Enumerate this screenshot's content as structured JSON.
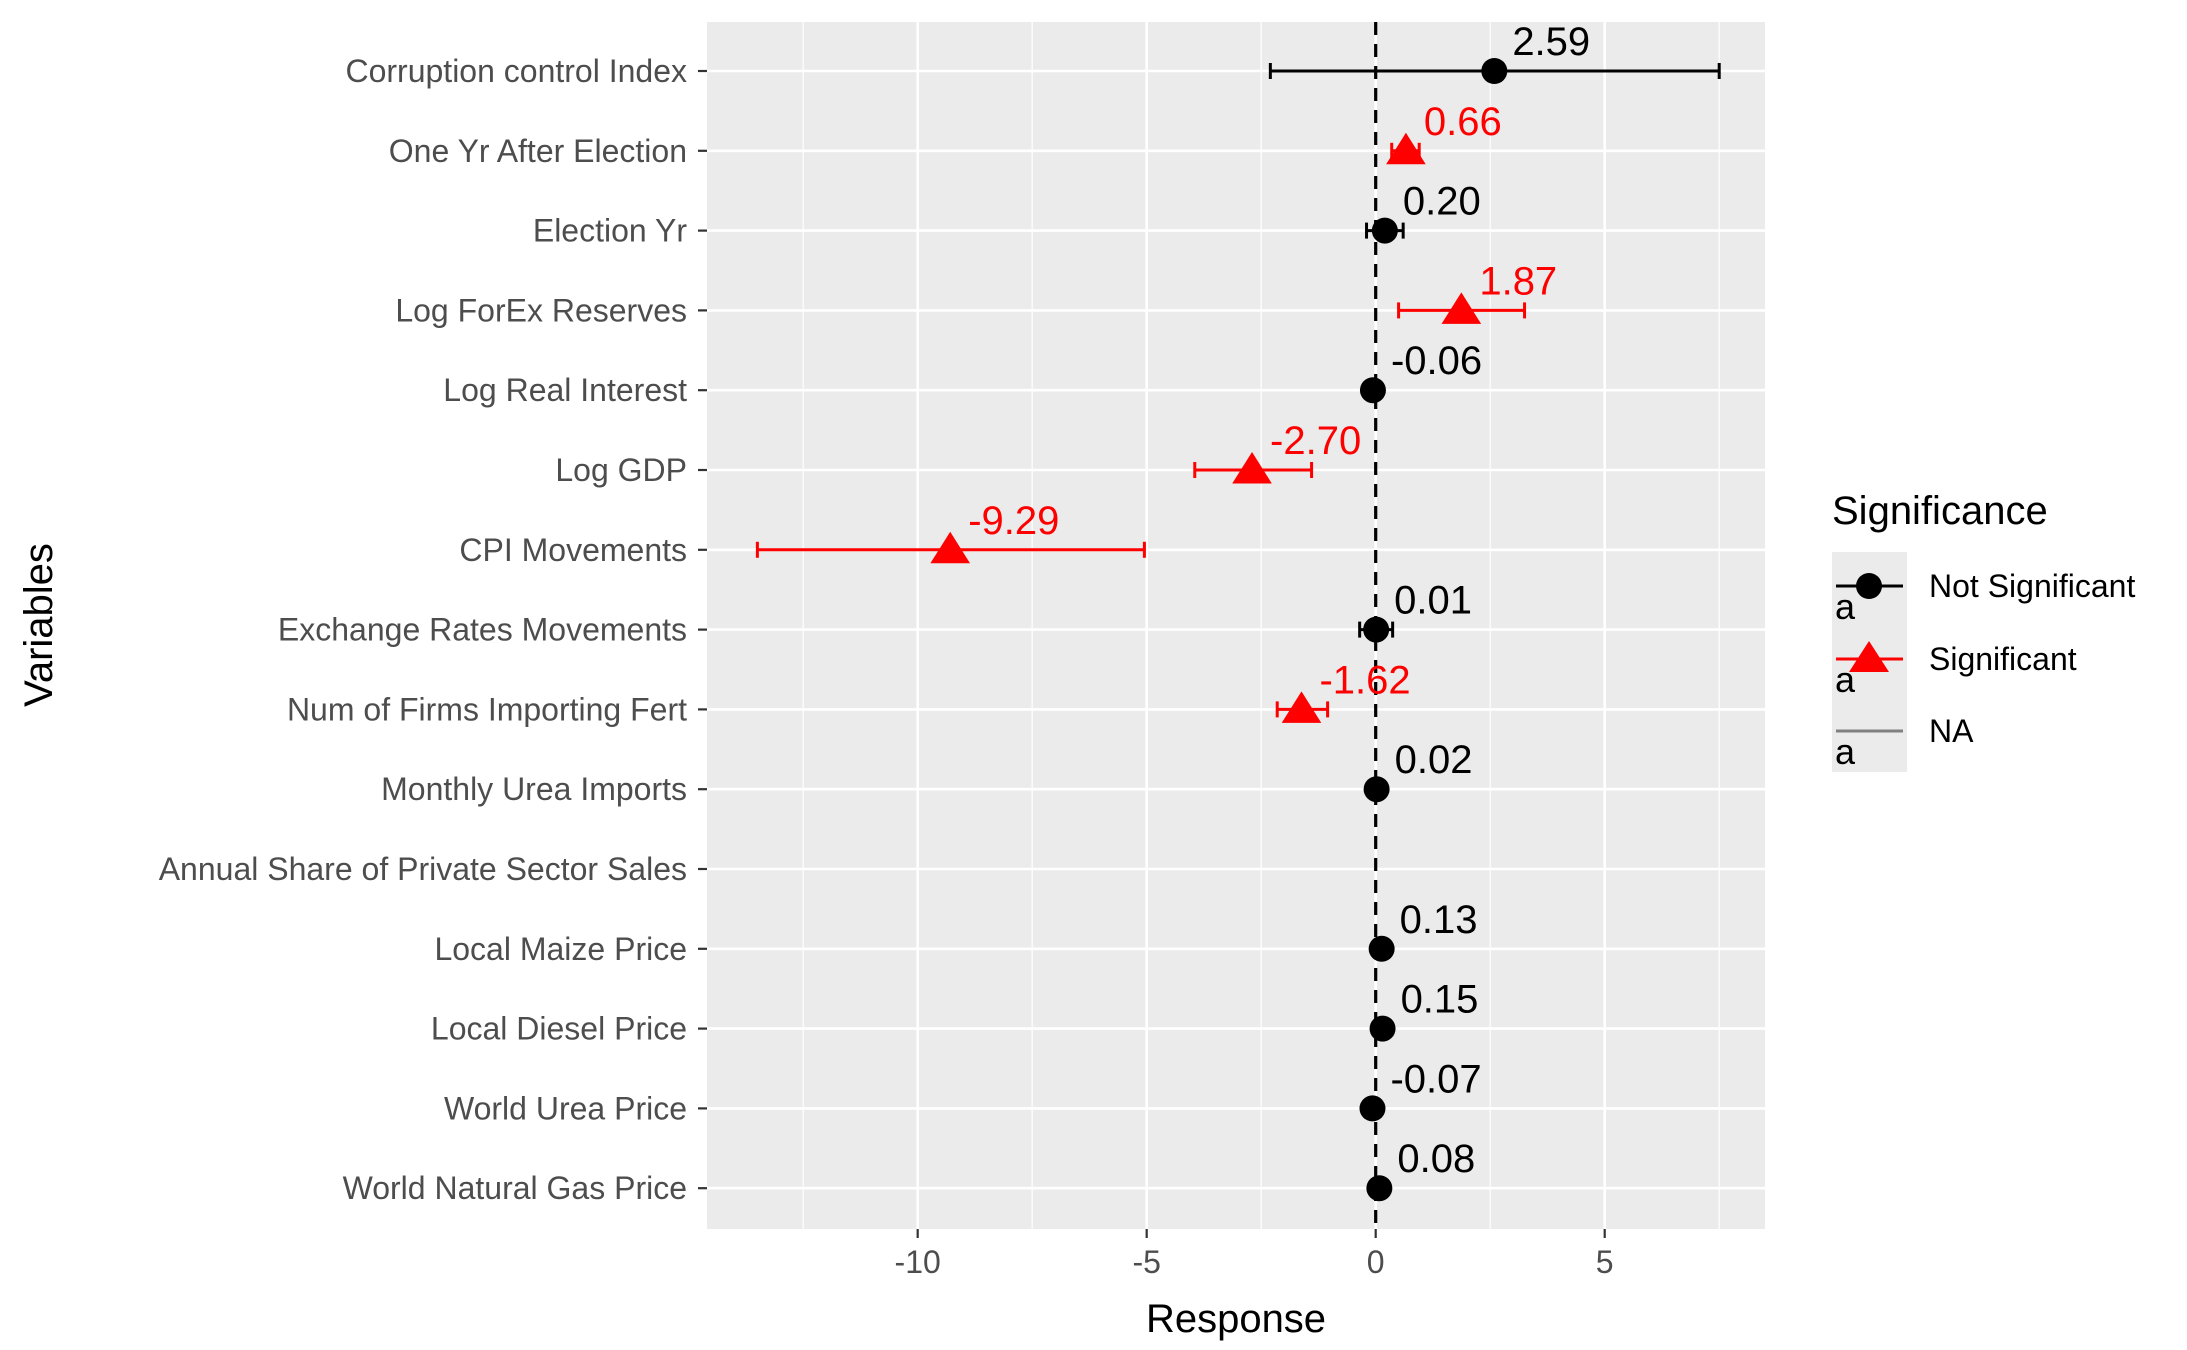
{
  "chart_data": {
    "type": "scatter",
    "subtype": "coefficient-plot-with-error-bars",
    "xlabel": "Response",
    "ylabel": "Variables",
    "xlim": [
      -14.6,
      8.5
    ],
    "x_ticks": [
      -10,
      -5,
      0,
      5
    ],
    "x_tick_labels": [
      "-10",
      "-5",
      "0",
      "5"
    ],
    "reference_line": {
      "x": 0,
      "style": "dashed"
    },
    "grid": true,
    "legend": {
      "title": "Significance",
      "position": "right",
      "entries": [
        {
          "label": "Not Significant",
          "color": "#000000",
          "shape": "circle",
          "key_glyph": "a"
        },
        {
          "label": "Significant",
          "color": "#ff0000",
          "shape": "triangle",
          "key_glyph": "a"
        },
        {
          "label": "NA",
          "color": "#808080",
          "shape": "none",
          "key_glyph": "a"
        }
      ]
    },
    "categories": [
      "Corruption control Index",
      "One Yr After Election",
      "Election Yr",
      "Log ForEx Reserves",
      "Log Real Interest",
      "Log GDP",
      "CPI Movements",
      "Exchange Rates Movements",
      "Num of Firms Importing Fert",
      "Monthly Urea Imports",
      "Annual Share of Private Sector Sales",
      "Local Maize Price",
      "Local Diesel Price",
      "World Urea Price",
      "World Natural Gas Price"
    ],
    "points": [
      {
        "variable": "Corruption control Index",
        "estimate": 2.59,
        "lower": -2.3,
        "upper": 7.5,
        "significance": "Not Significant",
        "label": "2.59"
      },
      {
        "variable": "One Yr After Election",
        "estimate": 0.66,
        "lower": 0.35,
        "upper": 0.95,
        "significance": "Significant",
        "label": "0.66"
      },
      {
        "variable": "Election Yr",
        "estimate": 0.2,
        "lower": -0.2,
        "upper": 0.6,
        "significance": "Not Significant",
        "label": "0.20"
      },
      {
        "variable": "Log ForEx Reserves",
        "estimate": 1.87,
        "lower": 0.5,
        "upper": 3.25,
        "significance": "Significant",
        "label": "1.87"
      },
      {
        "variable": "Log Real Interest",
        "estimate": -0.06,
        "lower": -0.12,
        "upper": 0.0,
        "significance": "Not Significant",
        "label": "-0.06"
      },
      {
        "variable": "Log GDP",
        "estimate": -2.7,
        "lower": -3.95,
        "upper": -1.4,
        "significance": "Significant",
        "label": "-2.70"
      },
      {
        "variable": "CPI Movements",
        "estimate": -9.29,
        "lower": -13.5,
        "upper": -5.05,
        "significance": "Significant",
        "label": "-9.29"
      },
      {
        "variable": "Exchange Rates Movements",
        "estimate": 0.01,
        "lower": -0.35,
        "upper": 0.37,
        "significance": "Not Significant",
        "label": "0.01"
      },
      {
        "variable": "Num of Firms Importing Fert",
        "estimate": -1.62,
        "lower": -2.15,
        "upper": -1.05,
        "significance": "Significant",
        "label": "-1.62"
      },
      {
        "variable": "Monthly Urea Imports",
        "estimate": 0.02,
        "lower": 0.0,
        "upper": 0.04,
        "significance": "Not Significant",
        "label": "0.02"
      },
      {
        "variable": "Annual Share of Private Sector Sales",
        "estimate": null,
        "lower": null,
        "upper": null,
        "significance": "NA",
        "label": ""
      },
      {
        "variable": "Local Maize Price",
        "estimate": 0.13,
        "lower": 0.1,
        "upper": 0.16,
        "significance": "Not Significant",
        "label": "0.13"
      },
      {
        "variable": "Local Diesel Price",
        "estimate": 0.15,
        "lower": 0.12,
        "upper": 0.18,
        "significance": "Not Significant",
        "label": "0.15"
      },
      {
        "variable": "World Urea Price",
        "estimate": -0.07,
        "lower": -0.1,
        "upper": -0.04,
        "significance": "Not Significant",
        "label": "-0.07"
      },
      {
        "variable": "World Natural Gas Price",
        "estimate": 0.08,
        "lower": 0.05,
        "upper": 0.11,
        "significance": "Not Significant",
        "label": "0.08"
      }
    ]
  },
  "colors": {
    "panel_background": "#ebebeb",
    "grid": "#ffffff",
    "not_significant": "#000000",
    "significant": "#ff0000",
    "na": "#808080"
  }
}
